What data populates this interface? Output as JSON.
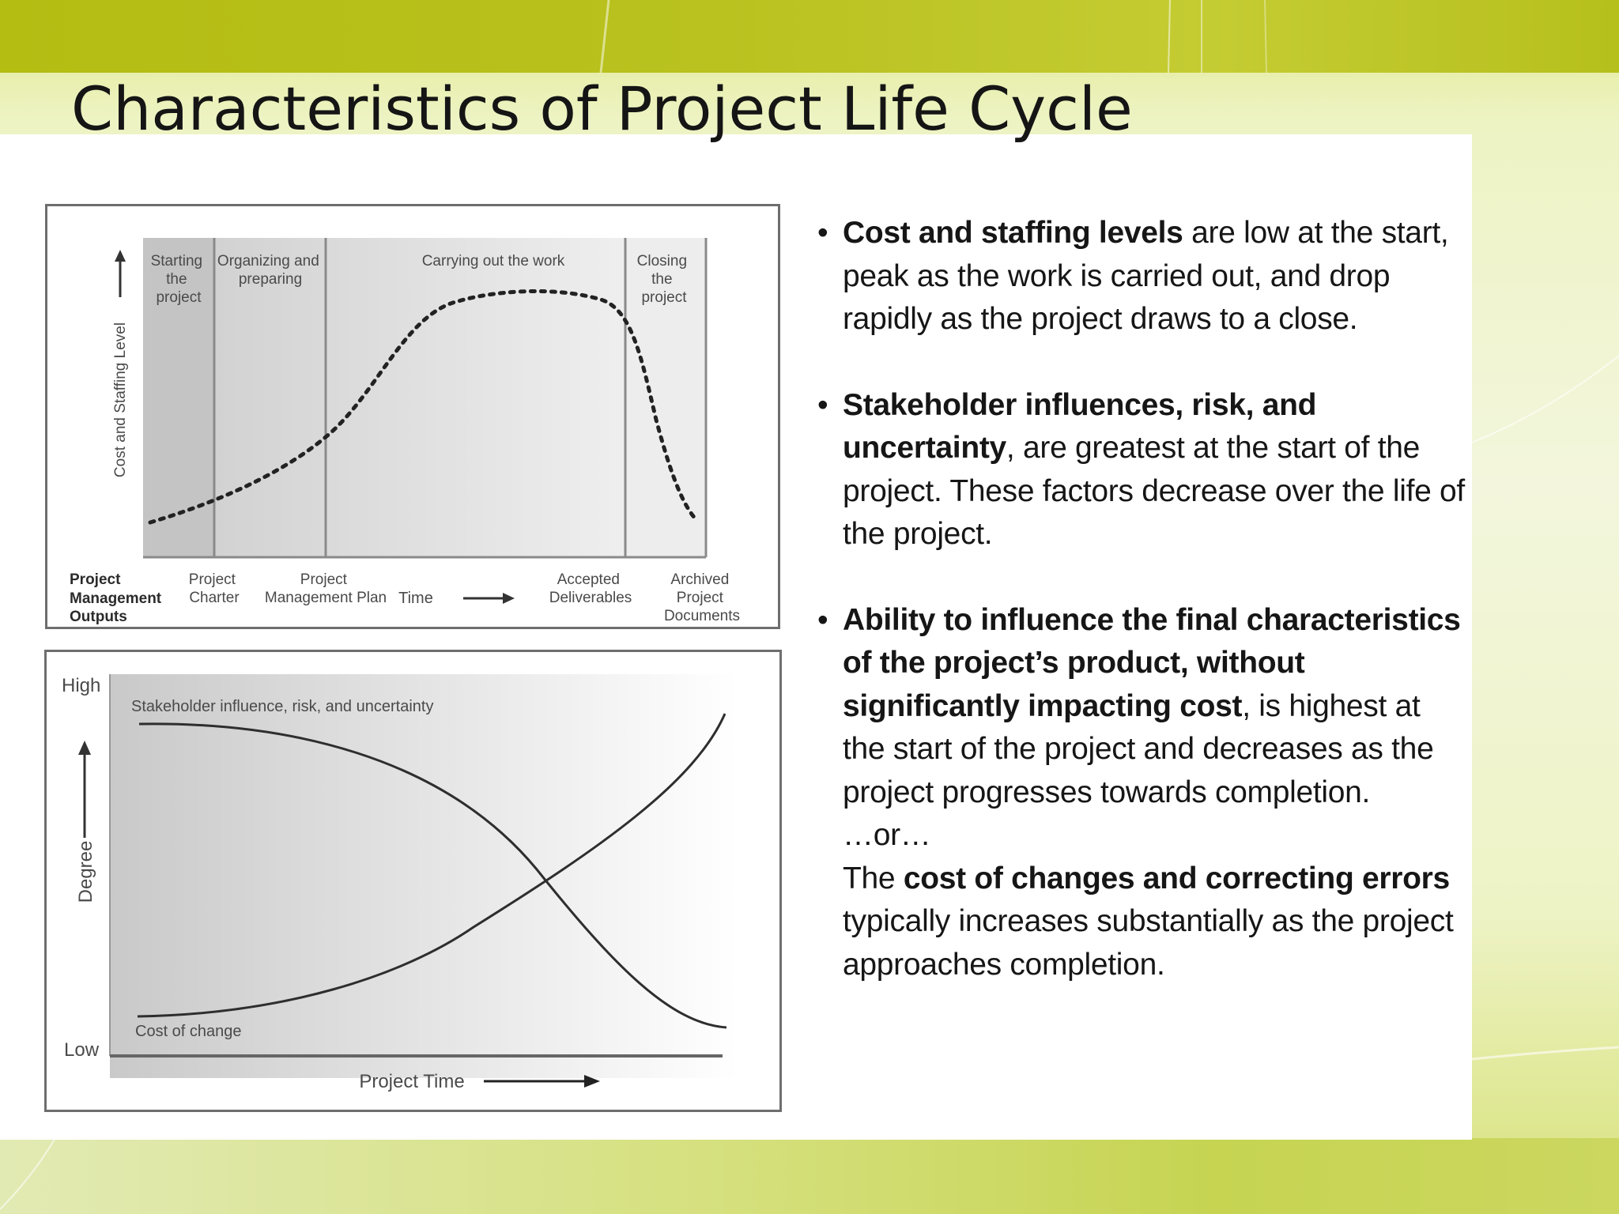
{
  "slide": {
    "title": "Characteristics of Project Life Cycle"
  },
  "figure_top": {
    "y_axis_label": "Cost and Staffing Level",
    "phases": [
      {
        "lines": [
          "Starting",
          "the",
          "project"
        ]
      },
      {
        "lines": [
          "Organizing and",
          "preparing"
        ]
      },
      {
        "lines": [
          "Carrying out the work"
        ]
      },
      {
        "lines": [
          "Closing",
          "the",
          "project"
        ]
      }
    ],
    "outputs_label": [
      "Project",
      "Management",
      "Outputs"
    ],
    "outputs": [
      {
        "lines": [
          "Project",
          "Charter"
        ]
      },
      {
        "lines": [
          "Project",
          "Management Plan"
        ]
      },
      {
        "lines": [
          "Accepted",
          "Deliverables"
        ]
      },
      {
        "lines": [
          "Archived",
          "Project",
          "Documents"
        ]
      }
    ],
    "x_axis_label": "Time"
  },
  "figure_bottom": {
    "y_high": "High",
    "y_low": "Low",
    "y_axis_label": "Degree",
    "x_axis_label": "Project Time",
    "curve_labels": {
      "stakeholder": "Stakeholder influence, risk, and uncertainty",
      "cost": "Cost of change"
    }
  },
  "bullets": [
    {
      "marker": "•",
      "bold": "Cost and staffing levels",
      "text": " are low at the start, peak as the work is carried out, and drop rapidly as the project draws to a close."
    },
    {
      "marker": "•",
      "bold": "Stakeholder influences, risk, and uncertainty",
      "text": ", are greatest at the start of the project. These factors decrease over the life of the project."
    },
    {
      "marker": "•",
      "bold": "Ability to influence the final characteristics of the project’s product, without significantly impacting cost",
      "text": ", is highest at the start of the project and decreases as the project progresses towards completion.",
      "or_text": "…or…",
      "alt_prefix": "The ",
      "alt_bold": "cost of changes and correcting errors",
      "alt_text": " typically increases substantially as the project approaches completion."
    }
  ]
}
